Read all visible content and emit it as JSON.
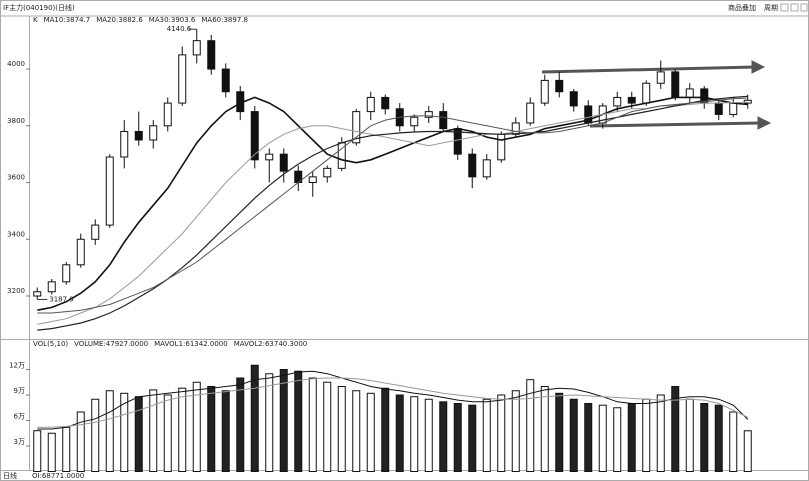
{
  "header": {
    "title": "IF主力(040190)(日线)",
    "buttons": [
      "商品叠加",
      "周期"
    ]
  },
  "footer": {
    "period": "日线",
    "oi": "OI:68771.0000"
  },
  "chart_data": [
    {
      "type": "candlestick",
      "legend_label": "K",
      "annotations": [
        {
          "text": "4140.6",
          "index": 11
        },
        {
          "text": "3187.9",
          "index": 0
        }
      ],
      "ylim": [
        3052,
        4187
      ],
      "yticks": [
        3200,
        3400,
        3600,
        3800,
        4000
      ],
      "open": [
        3200,
        3215,
        3250,
        3310,
        3400,
        3450,
        3690,
        3780,
        3750,
        3800,
        3880,
        4050,
        4100,
        4000,
        3920,
        3850,
        3680,
        3700,
        3640,
        3600,
        3620,
        3650,
        3740,
        3850,
        3900,
        3860,
        3800,
        3830,
        3850,
        3790,
        3700,
        3620,
        3680,
        3770,
        3810,
        3880,
        3960,
        3920,
        3870,
        3810,
        3870,
        3900,
        3880,
        3950,
        3990,
        3900,
        3930,
        3880,
        3840,
        3880
      ],
      "high": [
        3230,
        3260,
        3320,
        3420,
        3470,
        3700,
        3820,
        3850,
        3820,
        3900,
        4080,
        4140.6,
        4120,
        4020,
        3940,
        3870,
        3720,
        3720,
        3660,
        3640,
        3660,
        3760,
        3860,
        3920,
        3910,
        3880,
        3840,
        3870,
        3880,
        3800,
        3720,
        3700,
        3780,
        3830,
        3900,
        3980,
        3990,
        3930,
        3890,
        3880,
        3920,
        3920,
        3960,
        4030,
        4000,
        3950,
        3940,
        3890,
        3900,
        3910
      ],
      "low": [
        3187.9,
        3205,
        3240,
        3300,
        3380,
        3440,
        3650,
        3730,
        3720,
        3780,
        3870,
        4020,
        3980,
        3900,
        3820,
        3650,
        3600,
        3600,
        3570,
        3550,
        3600,
        3640,
        3730,
        3820,
        3840,
        3780,
        3780,
        3810,
        3780,
        3680,
        3580,
        3610,
        3670,
        3760,
        3800,
        3870,
        3900,
        3850,
        3800,
        3790,
        3850,
        3860,
        3870,
        3930,
        3890,
        3880,
        3860,
        3820,
        3830,
        3860
      ],
      "close": [
        3215,
        3250,
        3310,
        3400,
        3450,
        3690,
        3780,
        3750,
        3800,
        3880,
        4050,
        4100,
        4000,
        3920,
        3850,
        3680,
        3700,
        3640,
        3600,
        3620,
        3650,
        3740,
        3850,
        3900,
        3860,
        3800,
        3830,
        3850,
        3790,
        3700,
        3620,
        3680,
        3770,
        3810,
        3880,
        3960,
        3920,
        3870,
        3810,
        3870,
        3900,
        3880,
        3950,
        3990,
        3900,
        3930,
        3880,
        3840,
        3880,
        3890
      ],
      "series": [
        {
          "name": "MA10:3874.7",
          "color": "#111111",
          "width": 1.6,
          "values": [
            3150,
            3160,
            3180,
            3210,
            3250,
            3310,
            3390,
            3460,
            3520,
            3580,
            3660,
            3740,
            3800,
            3850,
            3880,
            3900,
            3880,
            3850,
            3800,
            3750,
            3700,
            3680,
            3670,
            3680,
            3700,
            3720,
            3740,
            3760,
            3780,
            3790,
            3780,
            3760,
            3750,
            3760,
            3770,
            3790,
            3800,
            3810,
            3820,
            3840,
            3860,
            3870,
            3880,
            3890,
            3900,
            3900,
            3900,
            3890,
            3880,
            3875
          ]
        },
        {
          "name": "MA20:3882.6",
          "color": "#999999",
          "width": 1,
          "values": [
            3100,
            3110,
            3120,
            3140,
            3160,
            3190,
            3230,
            3270,
            3320,
            3370,
            3420,
            3480,
            3540,
            3600,
            3650,
            3700,
            3740,
            3770,
            3790,
            3800,
            3800,
            3790,
            3780,
            3770,
            3760,
            3750,
            3740,
            3730,
            3740,
            3750,
            3760,
            3770,
            3770,
            3780,
            3790,
            3800,
            3810,
            3820,
            3830,
            3840,
            3850,
            3860,
            3860,
            3870,
            3870,
            3875,
            3880,
            3880,
            3882,
            3883
          ]
        },
        {
          "name": "MA30:3903.6",
          "color": "#222222",
          "width": 1.2,
          "values": [
            3080,
            3085,
            3095,
            3105,
            3120,
            3140,
            3165,
            3195,
            3225,
            3260,
            3300,
            3345,
            3395,
            3445,
            3495,
            3545,
            3590,
            3630,
            3665,
            3695,
            3720,
            3740,
            3755,
            3765,
            3770,
            3775,
            3778,
            3780,
            3780,
            3778,
            3775,
            3772,
            3770,
            3772,
            3775,
            3780,
            3790,
            3800,
            3810,
            3820,
            3830,
            3840,
            3850,
            3860,
            3870,
            3880,
            3890,
            3895,
            3900,
            3904
          ]
        },
        {
          "name": "MA60:3897.8",
          "color": "#555555",
          "width": 1,
          "values": [
            3140,
            3140,
            3145,
            3150,
            3160,
            3170,
            3190,
            3210,
            3230,
            3260,
            3290,
            3320,
            3360,
            3400,
            3440,
            3480,
            3520,
            3560,
            3600,
            3640,
            3680,
            3720,
            3760,
            3800,
            3820,
            3830,
            3835,
            3835,
            3830,
            3820,
            3810,
            3800,
            3790,
            3780,
            3775,
            3775,
            3780,
            3790,
            3800,
            3810,
            3830,
            3850,
            3860,
            3870,
            3875,
            3880,
            3885,
            3890,
            3895,
            3898
          ]
        }
      ]
    },
    {
      "type": "volume",
      "legend_label": "VOL(5,10)",
      "ylim": [
        0,
        154700
      ],
      "yticks": [
        {
          "value": 30000,
          "label": "3万"
        },
        {
          "value": 60000,
          "label": "6万"
        },
        {
          "value": 90000,
          "label": "9万"
        },
        {
          "value": 120000,
          "label": "12万"
        }
      ],
      "bars": {
        "name": "VOLUME:47927.0000",
        "values": [
          48000,
          45000,
          52000,
          70000,
          85000,
          95000,
          92000,
          88000,
          96000,
          90000,
          98000,
          105000,
          100000,
          95000,
          110000,
          125000,
          115000,
          120000,
          118000,
          110000,
          105000,
          100000,
          95000,
          92000,
          98000,
          90000,
          88000,
          85000,
          82000,
          80000,
          78000,
          85000,
          90000,
          95000,
          108000,
          100000,
          92000,
          85000,
          80000,
          78000,
          75000,
          80000,
          85000,
          90000,
          100000,
          85000,
          80000,
          78000,
          70000,
          47927
        ]
      },
      "series": [
        {
          "name": "MAVOL1:61342.0000",
          "color": "#111111",
          "values": [
            50000,
            50000,
            52000,
            58000,
            62000,
            70000,
            80000,
            88000,
            90000,
            92000,
            94000,
            96000,
            98000,
            100000,
            102000,
            108000,
            110000,
            113000,
            117000,
            118000,
            115000,
            110000,
            105000,
            100000,
            97000,
            95000,
            92000,
            90000,
            87000,
            84000,
            82000,
            82000,
            84000,
            87000,
            92000,
            96000,
            98000,
            97000,
            93000,
            88000,
            82000,
            80000,
            80000,
            82000,
            86000,
            88000,
            88000,
            85000,
            78000,
            61342
          ]
        },
        {
          "name": "MAVOL2:63740.3000",
          "color": "#999999",
          "values": [
            52000,
            52000,
            53000,
            55000,
            58000,
            62000,
            67000,
            72000,
            78000,
            84000,
            88000,
            90000,
            92000,
            94000,
            96000,
            98000,
            101000,
            104000,
            107000,
            109000,
            110000,
            110000,
            109000,
            107000,
            104000,
            101000,
            98000,
            95000,
            92000,
            90000,
            88000,
            86000,
            85000,
            85000,
            86000,
            88000,
            89000,
            90000,
            89000,
            88000,
            87000,
            86000,
            85000,
            84000,
            84000,
            85000,
            84000,
            80000,
            72000,
            63740.3
          ]
        }
      ]
    }
  ]
}
